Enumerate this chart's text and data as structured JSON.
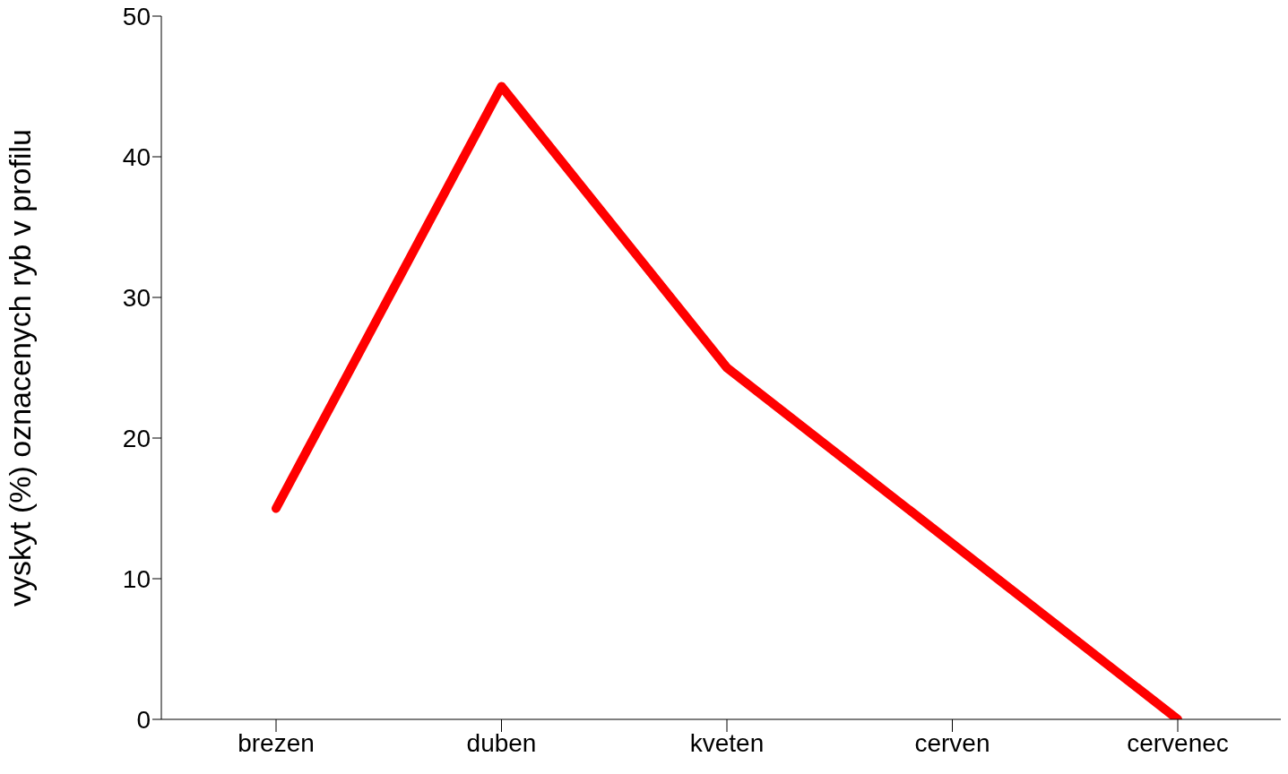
{
  "chart_data": {
    "type": "line",
    "ylabel": "vyskyt (%) oznacenych ryb v profilu",
    "categories": [
      "brezen",
      "duben",
      "kveten",
      "cerven",
      "cervenec"
    ],
    "series": [
      {
        "color": "#ff0000",
        "values": [
          15,
          45,
          25,
          12.5,
          0
        ]
      }
    ],
    "ylim": [
      0,
      50
    ],
    "yticks": [
      0,
      10,
      20,
      30,
      40,
      50
    ],
    "grid": false,
    "legend": false,
    "marker": "none",
    "line_style": "solid"
  }
}
